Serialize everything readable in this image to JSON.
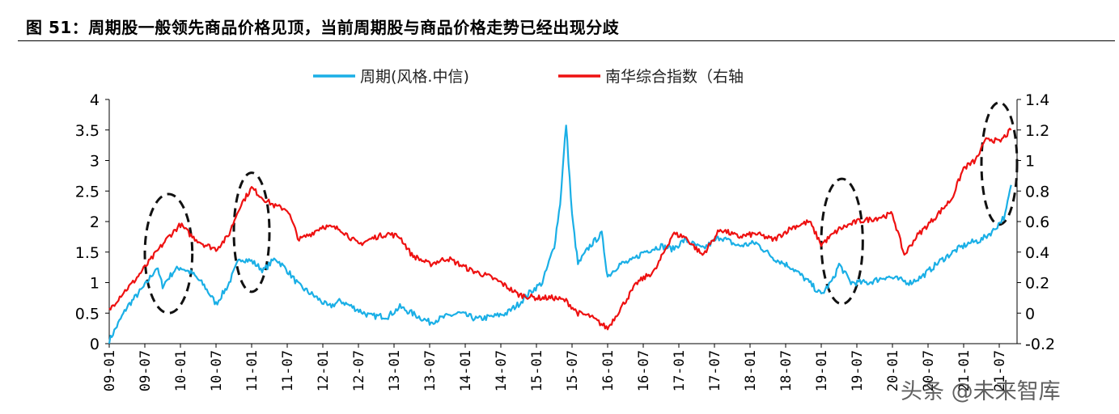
{
  "title": "图 51：周期股一般领先商品价格见顶，当前周期股与商品价格走势已经出现分歧",
  "watermark": "头条 @未来智库",
  "chart_data": {
    "type": "line",
    "grid": false,
    "legend_position": "top-center",
    "x_tick_labels": [
      "09-01",
      "09-07",
      "10-01",
      "10-07",
      "11-01",
      "11-07",
      "12-01",
      "12-07",
      "13-01",
      "13-07",
      "14-01",
      "14-07",
      "15-01",
      "15-07",
      "16-01",
      "16-07",
      "17-01",
      "17-07",
      "18-01",
      "18-07",
      "19-01",
      "19-07",
      "20-01",
      "20-07",
      "21-01",
      "21-07"
    ],
    "y_left": {
      "ticks": [
        "0",
        "0.5",
        "1",
        "1.5",
        "2",
        "2.5",
        "3",
        "3.5",
        "4"
      ],
      "lim": [
        0,
        4
      ]
    },
    "y_right": {
      "ticks": [
        "-0.2",
        "0",
        "0.2",
        "0.4",
        "0.6",
        "0.8",
        "1",
        "1.2",
        "1.4"
      ],
      "lim": [
        -0.2,
        1.4
      ]
    },
    "series": [
      {
        "name": "周期(风格.中信)",
        "axis": "left",
        "color": "#1AAFE6",
        "points": [
          [
            "09-01",
            0.05
          ],
          [
            "09-04",
            0.6
          ],
          [
            "09-07",
            0.95
          ],
          [
            "09-09",
            1.25
          ],
          [
            "09-10",
            0.95
          ],
          [
            "09-12",
            1.2
          ],
          [
            "10-01",
            1.25
          ],
          [
            "10-03",
            1.15
          ],
          [
            "10-05",
            0.95
          ],
          [
            "10-07",
            0.65
          ],
          [
            "10-09",
            0.95
          ],
          [
            "10-11",
            1.4
          ],
          [
            "11-01",
            1.35
          ],
          [
            "11-03",
            1.2
          ],
          [
            "11-05",
            1.4
          ],
          [
            "11-07",
            1.2
          ],
          [
            "11-09",
            0.95
          ],
          [
            "11-12",
            0.75
          ],
          [
            "12-02",
            0.6
          ],
          [
            "12-04",
            0.7
          ],
          [
            "12-06",
            0.6
          ],
          [
            "12-09",
            0.45
          ],
          [
            "12-12",
            0.45
          ],
          [
            "13-02",
            0.6
          ],
          [
            "13-05",
            0.45
          ],
          [
            "13-07",
            0.35
          ],
          [
            "13-10",
            0.45
          ],
          [
            "13-12",
            0.5
          ],
          [
            "14-03",
            0.4
          ],
          [
            "14-06",
            0.45
          ],
          [
            "14-08",
            0.5
          ],
          [
            "14-10",
            0.65
          ],
          [
            "14-12",
            0.85
          ],
          [
            "15-02",
            1.0
          ],
          [
            "15-04",
            1.6
          ],
          [
            "15-05",
            2.3
          ],
          [
            "15-06",
            3.6
          ],
          [
            "15-07",
            2.1
          ],
          [
            "15-08",
            1.3
          ],
          [
            "15-10",
            1.6
          ],
          [
            "15-12",
            1.8
          ],
          [
            "16-01",
            1.1
          ],
          [
            "16-03",
            1.3
          ],
          [
            "16-05",
            1.35
          ],
          [
            "16-07",
            1.5
          ],
          [
            "16-10",
            1.6
          ],
          [
            "16-12",
            1.55
          ],
          [
            "17-02",
            1.7
          ],
          [
            "17-05",
            1.55
          ],
          [
            "17-08",
            1.75
          ],
          [
            "17-11",
            1.6
          ],
          [
            "18-02",
            1.65
          ],
          [
            "18-05",
            1.4
          ],
          [
            "18-08",
            1.25
          ],
          [
            "18-11",
            1.0
          ],
          [
            "19-01",
            0.8
          ],
          [
            "19-03",
            1.05
          ],
          [
            "19-04",
            1.3
          ],
          [
            "19-06",
            1.0
          ],
          [
            "19-09",
            1.0
          ],
          [
            "19-12",
            1.1
          ],
          [
            "20-02",
            1.05
          ],
          [
            "20-04",
            1.0
          ],
          [
            "20-06",
            1.1
          ],
          [
            "20-09",
            1.35
          ],
          [
            "20-12",
            1.55
          ],
          [
            "21-02",
            1.65
          ],
          [
            "21-04",
            1.7
          ],
          [
            "21-06",
            1.85
          ],
          [
            "21-08",
            2.1
          ],
          [
            "21-09",
            2.6
          ]
        ]
      },
      {
        "name": "南华综合指数（右轴",
        "axis": "right",
        "color": "#EE1111",
        "points": [
          [
            "09-01",
            0.02
          ],
          [
            "09-03",
            0.12
          ],
          [
            "09-05",
            0.2
          ],
          [
            "09-07",
            0.3
          ],
          [
            "09-09",
            0.4
          ],
          [
            "09-11",
            0.5
          ],
          [
            "10-01",
            0.58
          ],
          [
            "10-03",
            0.5
          ],
          [
            "10-05",
            0.45
          ],
          [
            "10-07",
            0.42
          ],
          [
            "10-09",
            0.5
          ],
          [
            "10-11",
            0.7
          ],
          [
            "11-01",
            0.82
          ],
          [
            "11-03",
            0.75
          ],
          [
            "11-05",
            0.7
          ],
          [
            "11-07",
            0.68
          ],
          [
            "11-09",
            0.48
          ],
          [
            "11-11",
            0.52
          ],
          [
            "12-01",
            0.57
          ],
          [
            "12-04",
            0.55
          ],
          [
            "12-07",
            0.45
          ],
          [
            "12-10",
            0.5
          ],
          [
            "12-12",
            0.52
          ],
          [
            "13-02",
            0.5
          ],
          [
            "13-04",
            0.38
          ],
          [
            "13-07",
            0.32
          ],
          [
            "13-10",
            0.36
          ],
          [
            "13-12",
            0.32
          ],
          [
            "14-02",
            0.28
          ],
          [
            "14-05",
            0.24
          ],
          [
            "14-07",
            0.2
          ],
          [
            "14-10",
            0.12
          ],
          [
            "15-01",
            0.1
          ],
          [
            "15-04",
            0.1
          ],
          [
            "15-06",
            0.08
          ],
          [
            "15-08",
            0.0
          ],
          [
            "15-10",
            -0.02
          ],
          [
            "16-01",
            -0.1
          ],
          [
            "16-03",
            0.02
          ],
          [
            "16-06",
            0.2
          ],
          [
            "16-09",
            0.28
          ],
          [
            "16-12",
            0.52
          ],
          [
            "17-02",
            0.5
          ],
          [
            "17-05",
            0.38
          ],
          [
            "17-08",
            0.55
          ],
          [
            "17-11",
            0.5
          ],
          [
            "18-02",
            0.52
          ],
          [
            "18-05",
            0.48
          ],
          [
            "18-08",
            0.56
          ],
          [
            "18-11",
            0.6
          ],
          [
            "19-01",
            0.45
          ],
          [
            "19-04",
            0.55
          ],
          [
            "19-07",
            0.6
          ],
          [
            "19-10",
            0.62
          ],
          [
            "20-01",
            0.65
          ],
          [
            "20-03",
            0.38
          ],
          [
            "20-05",
            0.5
          ],
          [
            "20-08",
            0.62
          ],
          [
            "20-11",
            0.75
          ],
          [
            "21-01",
            0.95
          ],
          [
            "21-03",
            1.0
          ],
          [
            "21-05",
            1.15
          ],
          [
            "21-07",
            1.12
          ],
          [
            "21-09",
            1.2
          ]
        ]
      }
    ],
    "annotations": [
      {
        "type": "ellipse",
        "description": "dashed",
        "x_range": [
          "09-07",
          "10-03"
        ],
        "y_left_range": [
          0.5,
          2.45
        ]
      },
      {
        "type": "ellipse",
        "description": "dashed",
        "x_range": [
          "10-10",
          "11-04"
        ],
        "y_left_range": [
          0.85,
          2.8
        ]
      },
      {
        "type": "ellipse",
        "description": "dashed",
        "x_range": [
          "19-01",
          "19-08"
        ],
        "y_left_range": [
          0.65,
          2.7
        ]
      },
      {
        "type": "ellipse",
        "description": "dashed",
        "x_range": [
          "21-04",
          "21-10"
        ],
        "y_left_range": [
          1.95,
          3.95
        ]
      }
    ]
  }
}
